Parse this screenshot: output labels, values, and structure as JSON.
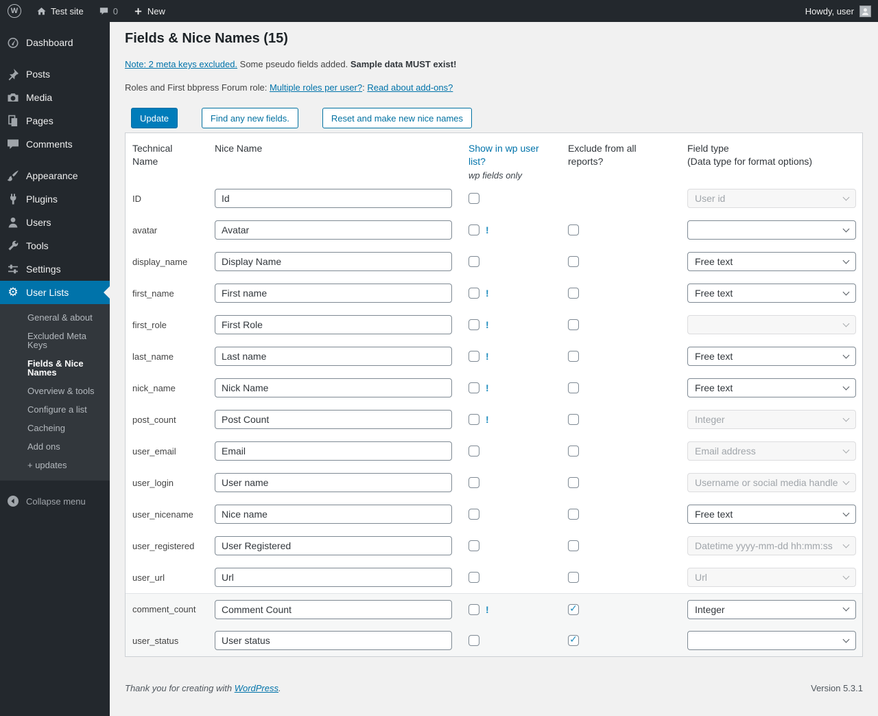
{
  "admin_bar": {
    "logo_letter": "W",
    "site_name": "Test site",
    "comment_count": "0",
    "new_label": "New",
    "howdy": "Howdy, user"
  },
  "sidebar": {
    "items": [
      {
        "label": "Dashboard",
        "icon": "dashboard-icon",
        "group_start": false
      },
      {
        "label": "Posts",
        "icon": "pushpin-icon",
        "group_start": true
      },
      {
        "label": "Media",
        "icon": "camera-icon",
        "group_start": false
      },
      {
        "label": "Pages",
        "icon": "pages-icon",
        "group_start": false
      },
      {
        "label": "Comments",
        "icon": "comment-icon",
        "group_start": false
      },
      {
        "label": "Appearance",
        "icon": "brush-icon",
        "group_start": true
      },
      {
        "label": "Plugins",
        "icon": "plug-icon",
        "group_start": false
      },
      {
        "label": "Users",
        "icon": "person-icon",
        "group_start": false
      },
      {
        "label": "Tools",
        "icon": "wrench-icon",
        "group_start": false
      },
      {
        "label": "Settings",
        "icon": "sliders-icon",
        "group_start": false
      }
    ],
    "user_lists": {
      "label": "User Lists",
      "icon": "gear-icon",
      "gear_glyph": "⚙"
    },
    "submenu": [
      "General & about",
      "Excluded Meta Keys",
      "Fields & Nice Names",
      "Overview & tools",
      "Configure a list",
      "Cacheing",
      "Add ons",
      "+ updates"
    ],
    "submenu_active_index": 2,
    "collapse_label": "Collapse menu"
  },
  "page": {
    "title": "Fields & Nice Names (15)",
    "note_link": "Note: 2 meta keys excluded.",
    "note_mid": " Some pseudo fields added. ",
    "note_bold": "Sample data MUST exist!",
    "roles_prefix": "Roles and First bbpress Forum role: ",
    "roles_link1": "Multiple roles per user?",
    "roles_sep": ": ",
    "roles_link2": "Read about add-ons?",
    "buttons": {
      "update": "Update",
      "find_new": "Find any new fields.",
      "reset": "Reset and make new nice names"
    }
  },
  "table": {
    "headers": {
      "technical": "Technical Name",
      "nice": "Nice Name",
      "show_link": "Show in wp user list?",
      "show_note": "wp fields only",
      "exclude": "Exclude from all reports?",
      "field_type_line1": "Field type",
      "field_type_line2": "(Data type for format options)"
    },
    "exclaim_mark": "!",
    "rows": [
      {
        "technical_name": "ID",
        "nice_name": "Id",
        "show_checked": false,
        "show_exclaim": false,
        "has_exclude": false,
        "exclude_checked": false,
        "field_type": "User id",
        "field_type_disabled": true,
        "highlighted": false
      },
      {
        "technical_name": "avatar",
        "nice_name": "Avatar",
        "show_checked": false,
        "show_exclaim": true,
        "has_exclude": true,
        "exclude_checked": false,
        "field_type": "",
        "field_type_disabled": false,
        "highlighted": false
      },
      {
        "technical_name": "display_name",
        "nice_name": "Display Name",
        "show_checked": false,
        "show_exclaim": false,
        "has_exclude": true,
        "exclude_checked": false,
        "field_type": "Free text",
        "field_type_disabled": false,
        "highlighted": false
      },
      {
        "technical_name": "first_name",
        "nice_name": "First name",
        "show_checked": false,
        "show_exclaim": true,
        "has_exclude": true,
        "exclude_checked": false,
        "field_type": "Free text",
        "field_type_disabled": false,
        "highlighted": false
      },
      {
        "technical_name": "first_role",
        "nice_name": "First Role",
        "show_checked": false,
        "show_exclaim": true,
        "has_exclude": true,
        "exclude_checked": false,
        "field_type": "",
        "field_type_disabled": true,
        "highlighted": false
      },
      {
        "technical_name": "last_name",
        "nice_name": "Last name",
        "show_checked": false,
        "show_exclaim": true,
        "has_exclude": true,
        "exclude_checked": false,
        "field_type": "Free text",
        "field_type_disabled": false,
        "highlighted": false
      },
      {
        "technical_name": "nick_name",
        "nice_name": "Nick Name",
        "show_checked": false,
        "show_exclaim": true,
        "has_exclude": true,
        "exclude_checked": false,
        "field_type": "Free text",
        "field_type_disabled": false,
        "highlighted": false
      },
      {
        "technical_name": "post_count",
        "nice_name": "Post Count",
        "show_checked": false,
        "show_exclaim": true,
        "has_exclude": true,
        "exclude_checked": false,
        "field_type": "Integer",
        "field_type_disabled": true,
        "highlighted": false
      },
      {
        "technical_name": "user_email",
        "nice_name": "Email",
        "show_checked": false,
        "show_exclaim": false,
        "has_exclude": true,
        "exclude_checked": false,
        "field_type": "Email address",
        "field_type_disabled": true,
        "highlighted": false
      },
      {
        "technical_name": "user_login",
        "nice_name": "User name",
        "show_checked": false,
        "show_exclaim": false,
        "has_exclude": true,
        "exclude_checked": false,
        "field_type": "Username or social media handle",
        "field_type_disabled": true,
        "highlighted": false
      },
      {
        "technical_name": "user_nicename",
        "nice_name": "Nice name",
        "show_checked": false,
        "show_exclaim": false,
        "has_exclude": true,
        "exclude_checked": false,
        "field_type": "Free text",
        "field_type_disabled": false,
        "highlighted": false
      },
      {
        "technical_name": "user_registered",
        "nice_name": "User Registered",
        "show_checked": false,
        "show_exclaim": false,
        "has_exclude": true,
        "exclude_checked": false,
        "field_type": "Datetime yyyy-mm-dd hh:mm:ss",
        "field_type_disabled": true,
        "highlighted": false
      },
      {
        "technical_name": "user_url",
        "nice_name": "Url",
        "show_checked": false,
        "show_exclaim": false,
        "has_exclude": true,
        "exclude_checked": false,
        "field_type": "Url",
        "field_type_disabled": true,
        "highlighted": false
      },
      {
        "technical_name": "comment_count",
        "nice_name": "Comment Count",
        "show_checked": false,
        "show_exclaim": true,
        "has_exclude": true,
        "exclude_checked": true,
        "field_type": "Integer",
        "field_type_disabled": false,
        "highlighted": true
      },
      {
        "technical_name": "user_status",
        "nice_name": "User status",
        "show_checked": false,
        "show_exclaim": false,
        "has_exclude": true,
        "exclude_checked": true,
        "field_type": "",
        "field_type_disabled": false,
        "highlighted": true
      }
    ]
  },
  "footer": {
    "thanks_prefix": "Thank you for creating with ",
    "wordpress_link": "WordPress",
    "period": ".",
    "version": "Version 5.3.1"
  },
  "colors": {
    "accent_blue": "#0073aa",
    "primary_button": "#007cba",
    "sidebar_bg": "#23282d",
    "submenu_bg": "#32373c",
    "content_bg": "#f1f1f1",
    "highlight_row_bg": "#f6f7f7",
    "checkmark_blue": "#1e8cbe"
  }
}
